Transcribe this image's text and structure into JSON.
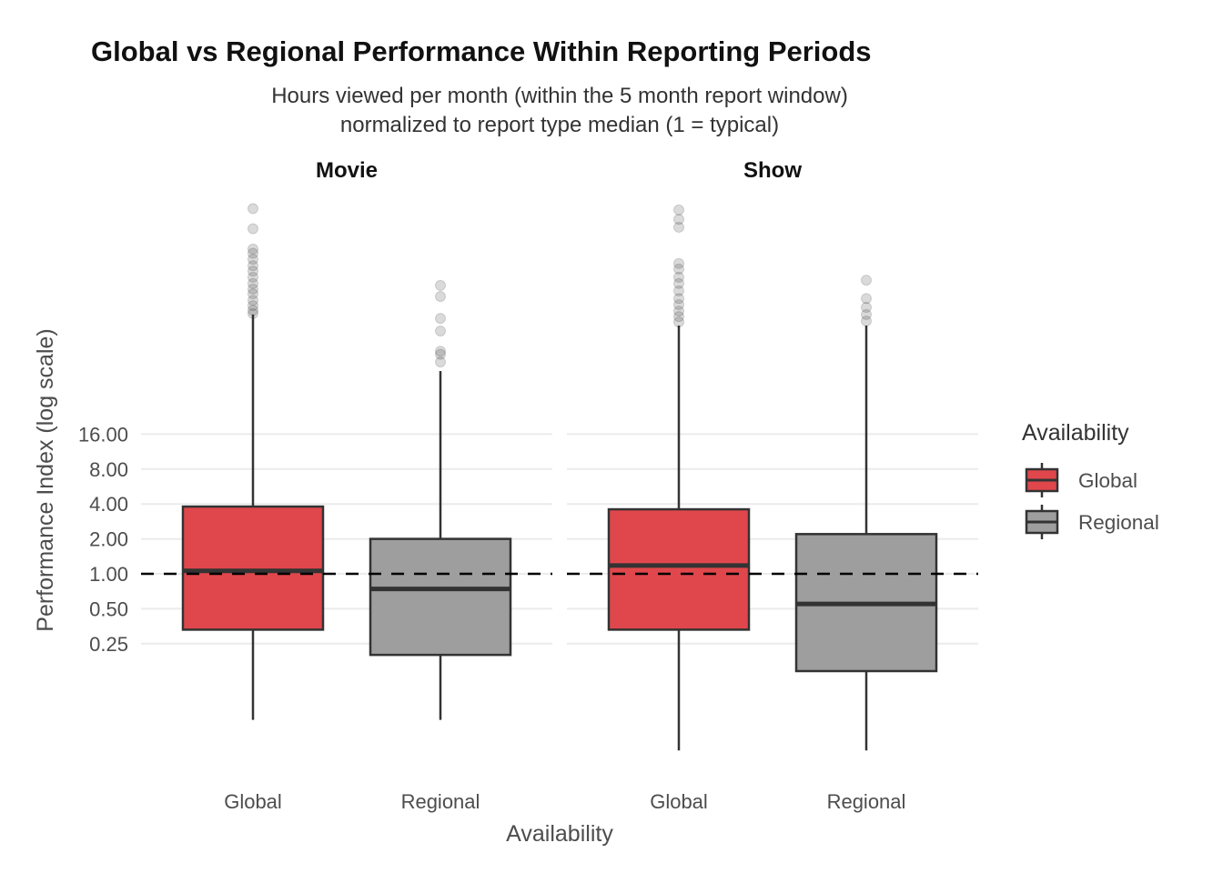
{
  "chart_data": {
    "type": "boxplot",
    "title": "Global vs Regional Performance Within Reporting Periods",
    "subtitle_lines": [
      "Hours viewed per month (within the 5 month report window)",
      "normalized to report type median (1 = typical)"
    ],
    "xlabel": "Availability",
    "ylabel": "Performance Index (log scale)",
    "y_scale": "log2",
    "y_ticks": [
      0.25,
      0.5,
      1,
      2,
      4,
      8,
      16
    ],
    "y_tick_labels": [
      "0.25",
      "0.50",
      "1.00",
      "2.00",
      "4.00",
      "8.00",
      "16.00"
    ],
    "reference_line": {
      "y": 1,
      "style": "dashed"
    },
    "grid": true,
    "legend": {
      "title": "Availability",
      "position": "right",
      "entries": [
        {
          "label": "Global",
          "color": "#E0474C"
        },
        {
          "label": "Regional",
          "color": "#9E9E9E"
        }
      ]
    },
    "facets": [
      {
        "label": "Movie",
        "categories": [
          "Global",
          "Regional"
        ],
        "boxes": [
          {
            "category": "Global",
            "whisker_low": 0.055,
            "q1": 0.33,
            "median": 1.06,
            "q3": 3.8,
            "whisker_high": 172,
            "outliers": [
              1408,
              944,
              630,
              580,
              515,
              453,
              407,
              360,
              318,
              285,
              259,
              228,
              205,
              187,
              175
            ]
          },
          {
            "category": "Regional",
            "whisker_low": 0.055,
            "q1": 0.2,
            "median": 0.74,
            "q3": 2.0,
            "whisker_high": 56,
            "outliers": [
              306,
              246,
              159,
              124,
              83,
              78,
              67
            ]
          }
        ]
      },
      {
        "label": "Show",
        "categories": [
          "Global",
          "Regional"
        ],
        "boxes": [
          {
            "category": "Global",
            "whisker_low": 0.03,
            "q1": 0.33,
            "median": 1.18,
            "q3": 3.6,
            "whisker_high": 138,
            "outliers": [
              1370,
              1137,
              971,
              473,
              424,
              360,
              318,
              275,
              236,
              209,
              184,
              165,
              148
            ]
          },
          {
            "category": "Regional",
            "whisker_low": 0.03,
            "q1": 0.145,
            "median": 0.55,
            "q3": 2.2,
            "whisker_high": 138,
            "outliers": [
              340,
              236,
              198,
              172,
              151
            ]
          }
        ]
      }
    ]
  }
}
